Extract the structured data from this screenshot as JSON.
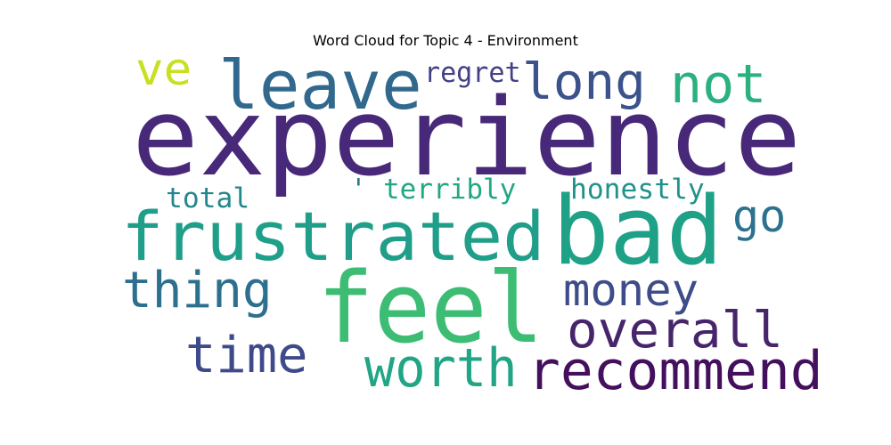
{
  "chart_data": {
    "type": "wordcloud",
    "title": "Word Cloud for Topic 4 - Environment",
    "words": [
      {
        "text": "experience",
        "color": "#482878"
      },
      {
        "text": "bad",
        "color": "#1fa187"
      },
      {
        "text": "feel",
        "color": "#3dbc74"
      },
      {
        "text": "frustrated",
        "color": "#1f9e89"
      },
      {
        "text": "leave",
        "color": "#31688e"
      },
      {
        "text": "worth",
        "color": "#21a585"
      },
      {
        "text": "recommend",
        "color": "#440f5d"
      },
      {
        "text": "overall",
        "color": "#46256b"
      },
      {
        "text": "not",
        "color": "#2bb07f"
      },
      {
        "text": "long",
        "color": "#3b528b"
      },
      {
        "text": "time",
        "color": "#3f4a8a"
      },
      {
        "text": "money",
        "color": "#3e4c8a"
      },
      {
        "text": "thing",
        "color": "#2d708e"
      },
      {
        "text": "go",
        "color": "#2c718e"
      },
      {
        "text": "ve",
        "color": "#c8e020"
      },
      {
        "text": "regret",
        "color": "#424086"
      },
      {
        "text": "terribly",
        "color": "#22a785"
      },
      {
        "text": "honestly",
        "color": "#20928c"
      },
      {
        "text": "total",
        "color": "#24878e"
      },
      {
        "text": "'",
        "color": "#2a788e"
      }
    ]
  }
}
